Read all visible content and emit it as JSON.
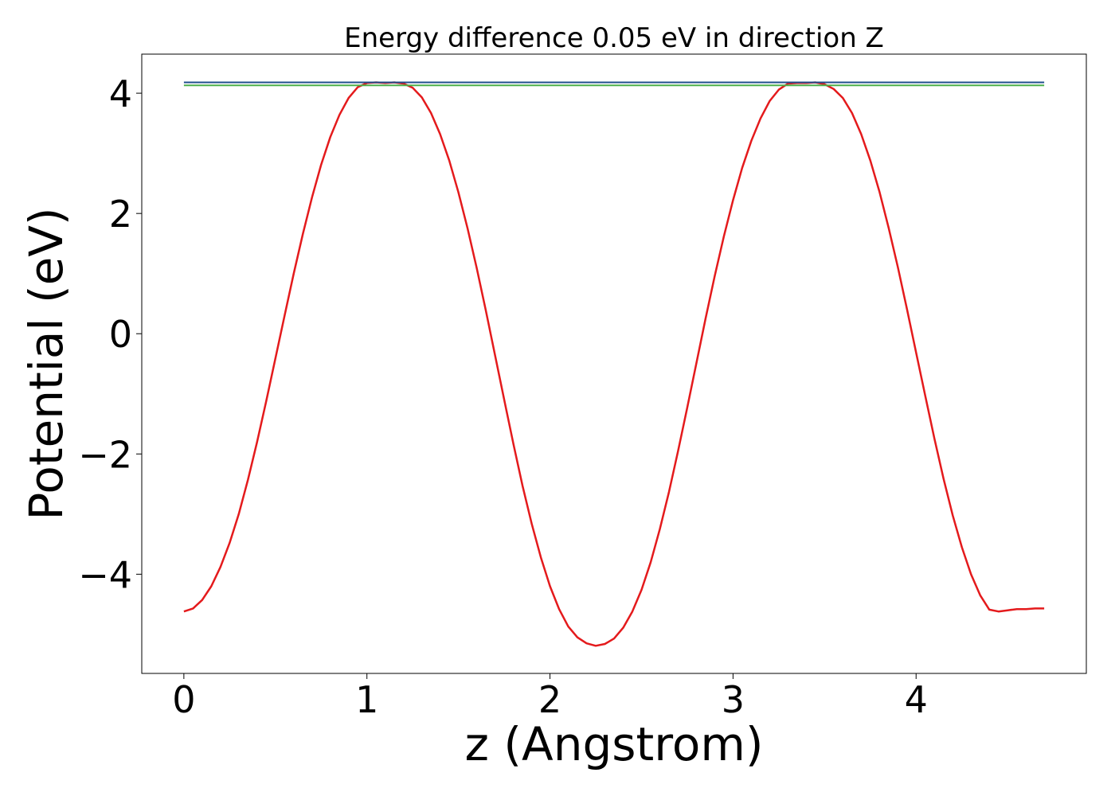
{
  "chart_data": {
    "type": "line",
    "title": "Energy difference 0.05 eV in direction Z",
    "xlabel": "z (Angstrom)",
    "ylabel": "Potential (eV)",
    "xlim": [
      -0.23,
      4.93
    ],
    "ylim": [
      -5.65,
      4.65
    ],
    "x_ticks": [
      0,
      1,
      2,
      3,
      4
    ],
    "y_ticks": [
      -4,
      -2,
      0,
      2,
      4
    ],
    "x_tick_labels": [
      "0",
      "1",
      "2",
      "3",
      "4"
    ],
    "y_tick_labels": [
      "−4",
      "−2",
      "0",
      "2",
      "4"
    ],
    "grid": false,
    "legend": "none",
    "series": [
      {
        "color": "#e41a1c",
        "kind": "curve",
        "x": [
          0.0,
          0.05,
          0.1,
          0.15,
          0.2,
          0.25,
          0.3,
          0.35,
          0.4,
          0.45,
          0.5,
          0.55,
          0.6,
          0.65,
          0.7,
          0.75,
          0.8,
          0.85,
          0.9,
          0.95,
          1.0,
          1.05,
          1.1,
          1.15,
          1.2,
          1.25,
          1.3,
          1.35,
          1.4,
          1.45,
          1.5,
          1.55,
          1.6,
          1.65,
          1.7,
          1.75,
          1.8,
          1.85,
          1.9,
          1.95,
          2.0,
          2.05,
          2.1,
          2.15,
          2.2,
          2.25,
          2.3,
          2.35,
          2.4,
          2.45,
          2.5,
          2.55,
          2.6,
          2.65,
          2.7,
          2.75,
          2.8,
          2.85,
          2.9,
          2.95,
          3.0,
          3.05,
          3.1,
          3.15,
          3.2,
          3.25,
          3.3,
          3.35,
          3.4,
          3.45,
          3.5,
          3.55,
          3.6,
          3.65,
          3.7,
          3.75,
          3.8,
          3.85,
          3.9,
          3.95,
          4.0,
          4.05,
          4.1,
          4.15,
          4.2,
          4.25,
          4.3,
          4.35,
          4.4,
          4.45,
          4.5,
          4.55,
          4.6,
          4.65,
          4.7
        ],
        "y": [
          -4.62,
          -4.57,
          -4.43,
          -4.2,
          -3.88,
          -3.48,
          -3.0,
          -2.43,
          -1.8,
          -1.12,
          -0.41,
          0.3,
          1.0,
          1.66,
          2.27,
          2.81,
          3.27,
          3.64,
          3.92,
          4.1,
          4.17,
          4.18,
          4.17,
          4.18,
          4.16,
          4.09,
          3.93,
          3.67,
          3.32,
          2.88,
          2.35,
          1.75,
          1.09,
          0.38,
          -0.36,
          -1.1,
          -1.83,
          -2.53,
          -3.16,
          -3.72,
          -4.2,
          -4.58,
          -4.87,
          -5.05,
          -5.15,
          -5.19,
          -5.16,
          -5.07,
          -4.89,
          -4.62,
          -4.26,
          -3.8,
          -3.25,
          -2.63,
          -1.95,
          -1.23,
          -0.49,
          0.25,
          0.96,
          1.62,
          2.22,
          2.76,
          3.21,
          3.58,
          3.87,
          4.06,
          4.16,
          4.17,
          4.17,
          4.18,
          4.15,
          4.07,
          3.92,
          3.67,
          3.32,
          2.88,
          2.36,
          1.76,
          1.11,
          0.41,
          -0.31,
          -1.03,
          -1.74,
          -2.41,
          -3.02,
          -3.55,
          -4.0,
          -4.35,
          -4.59,
          -4.62,
          -4.6,
          -4.58,
          -4.58,
          -4.57,
          -4.57
        ]
      },
      {
        "color": "#1f4e8c",
        "kind": "hline",
        "x": [
          0.0,
          4.7
        ],
        "y": [
          4.18,
          4.18
        ]
      },
      {
        "color": "#4daf4a",
        "kind": "hline",
        "x": [
          0.0,
          4.7
        ],
        "y": [
          4.13,
          4.13
        ]
      }
    ]
  }
}
